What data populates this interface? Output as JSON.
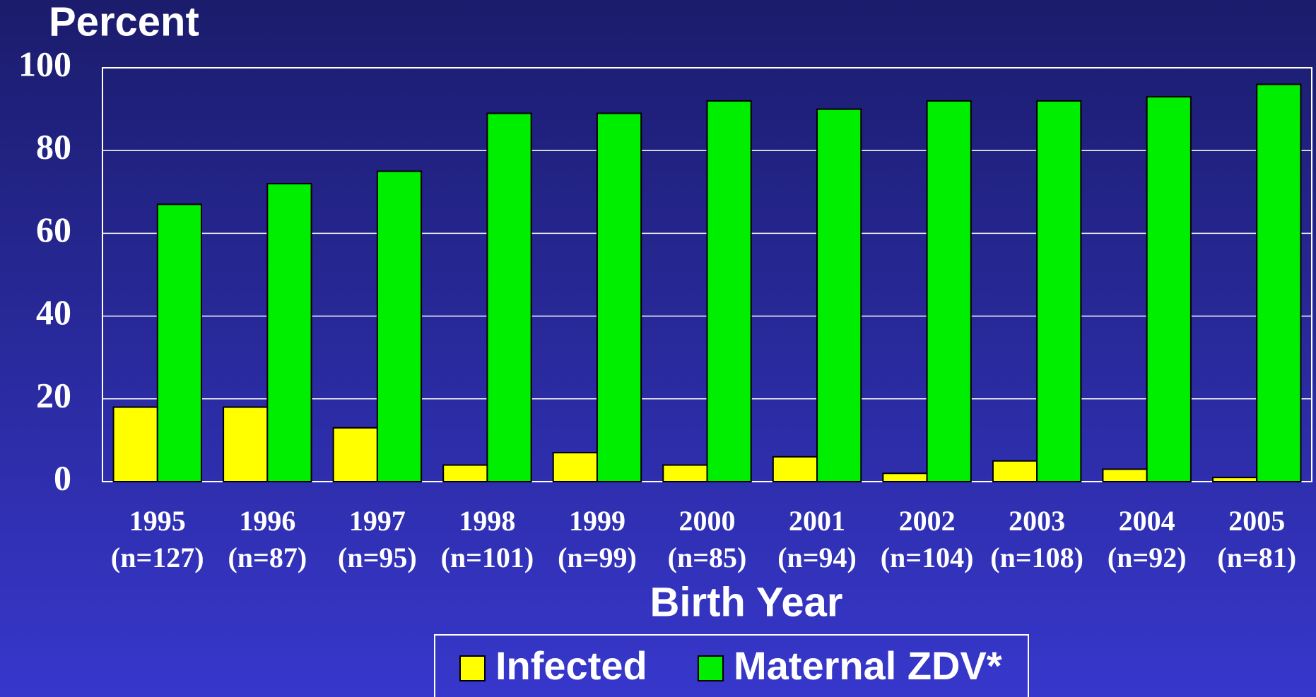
{
  "chart_data": {
    "type": "bar",
    "ylabel": "Percent",
    "xlabel": "Birth Year",
    "categories": [
      [
        "1995",
        "(n=127)"
      ],
      [
        "1996",
        "(n=87)"
      ],
      [
        "1997",
        "(n=95)"
      ],
      [
        "1998",
        "(n=101)"
      ],
      [
        "1999",
        "(n=99)"
      ],
      [
        "2000",
        "(n=85)"
      ],
      [
        "2001",
        "(n=94)"
      ],
      [
        "2002",
        "(n=104)"
      ],
      [
        "2003",
        "(n=108)"
      ],
      [
        "2004",
        "(n=92)"
      ],
      [
        "2005",
        "(n=81)"
      ]
    ],
    "series": [
      {
        "name": "Infected",
        "color": "#ffff00",
        "values": [
          18,
          18,
          13,
          4,
          7,
          4,
          6,
          2,
          5,
          3,
          1
        ]
      },
      {
        "name": "Maternal ZDV*",
        "color": "#00ee00",
        "values": [
          67,
          72,
          75,
          89,
          89,
          92,
          90,
          92,
          92,
          93,
          96
        ]
      }
    ],
    "ylim": [
      0,
      100
    ],
    "yticks": [
      0,
      20,
      40,
      60,
      80,
      100
    ],
    "grid": true
  }
}
